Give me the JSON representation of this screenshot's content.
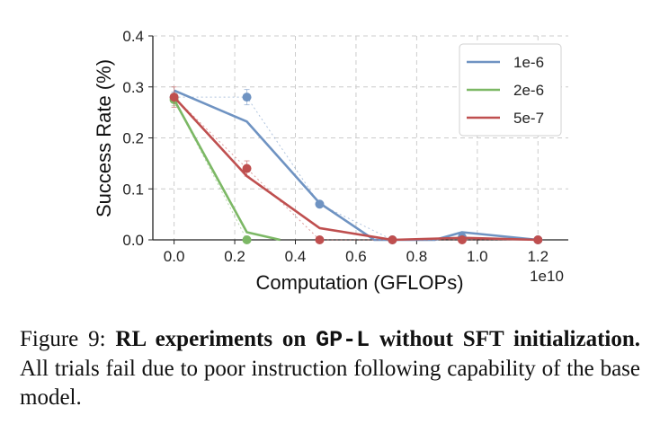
{
  "chart_data": {
    "type": "line",
    "xlabel": "Computation (GFLOPs)",
    "ylabel": "Success Rate (%)",
    "x_offset_label": "1e10",
    "xlim": [
      -0.07,
      1.3
    ],
    "ylim": [
      0,
      0.4
    ],
    "xticks": [
      0.0,
      0.2,
      0.4,
      0.6,
      0.8,
      1.0,
      1.2
    ],
    "xtick_labels": [
      "0.0",
      "0.2",
      "0.4",
      "0.6",
      "0.8",
      "1.0",
      "1.2"
    ],
    "yticks": [
      0.0,
      0.1,
      0.2,
      0.3,
      0.4
    ],
    "ytick_labels": [
      "0.0",
      "0.1",
      "0.2",
      "0.3",
      "0.4"
    ],
    "grid": true,
    "legend_position": "top-right",
    "series": [
      {
        "name": "1e-6",
        "color": "#6f93c2",
        "smoothed": {
          "x": [
            0.0,
            0.24,
            0.48,
            0.66,
            0.72,
            0.86,
            0.95,
            1.2
          ],
          "y": [
            0.293,
            0.232,
            0.072,
            0.0,
            0.0,
            0.0,
            0.015,
            0.0
          ]
        },
        "raw": {
          "x": [
            0.0,
            0.24,
            0.48,
            0.72,
            0.95,
            1.2
          ],
          "y": [
            0.28,
            0.28,
            0.07,
            0.0,
            0.005,
            0.0
          ]
        },
        "raw_err": [
          0.01,
          0.015,
          0.0,
          0.0,
          0.0,
          0.0
        ]
      },
      {
        "name": "2e-6",
        "color": "#7cb865",
        "smoothed": {
          "x": [
            0.0,
            0.24,
            0.35
          ],
          "y": [
            0.275,
            0.015,
            0.0
          ]
        },
        "raw": {
          "x": [
            0.0,
            0.24
          ],
          "y": [
            0.275,
            0.0
          ]
        },
        "raw_err": [
          0.012,
          0.0
        ]
      },
      {
        "name": "5e-7",
        "color": "#bf4f4f",
        "smoothed": {
          "x": [
            0.0,
            0.24,
            0.48,
            0.72,
            0.95,
            1.2
          ],
          "y": [
            0.28,
            0.125,
            0.023,
            0.0,
            0.004,
            0.0
          ]
        },
        "raw": {
          "x": [
            0.0,
            0.24,
            0.48,
            0.72,
            0.95,
            1.2
          ],
          "y": [
            0.28,
            0.14,
            0.0,
            0.0,
            0.0,
            0.0
          ]
        },
        "raw_err": [
          0.02,
          0.015,
          0.0,
          0.0,
          0.0,
          0.0
        ]
      }
    ]
  },
  "caption": {
    "label": "Figure 9: ",
    "bold_1": "RL experiments on ",
    "code": "GP-L",
    "bold_2": " without SFT initialization.",
    "rest": " All trials fail due to poor instruction following capability of the base model."
  }
}
